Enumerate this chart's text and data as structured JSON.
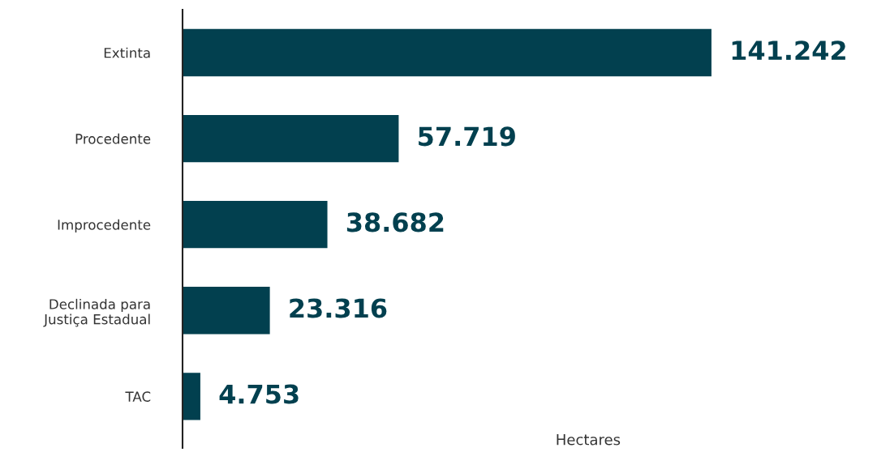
{
  "chart_data": {
    "type": "bar",
    "orientation": "horizontal",
    "xlabel": "Hectares",
    "categories": [
      "Extinta",
      "Procedente",
      "Improcedente",
      "Declinada para\nJustiça Estadual",
      "TAC"
    ],
    "values": [
      141242,
      57719,
      38682,
      23316,
      4753
    ],
    "value_labels": [
      "141.242",
      "57.719",
      "38.682",
      "23.316",
      "4.753"
    ],
    "color": "#02404f",
    "tick_labels": "y",
    "grid": false,
    "legend": false
  }
}
